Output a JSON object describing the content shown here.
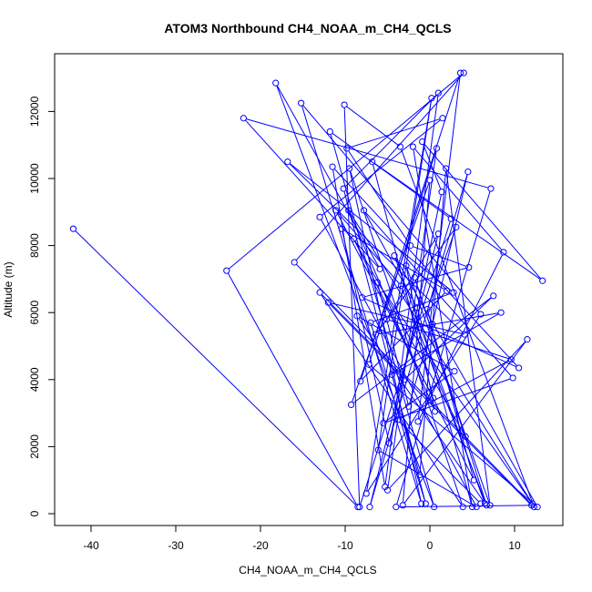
{
  "chart_data": {
    "type": "line",
    "title": "ATOM3 Northbound CH4_NOAA_m_CH4_QCLS",
    "xlabel": "CH4_NOAA_m_CH4_QCLS",
    "ylabel": "Altitude (m)",
    "xlim": [
      -44,
      15
    ],
    "ylim": [
      -400,
      13500
    ],
    "x_ticks": [
      -40,
      -30,
      -20,
      -10,
      0,
      10
    ],
    "y_ticks": [
      0,
      2000,
      4000,
      6000,
      8000,
      10000,
      12000
    ],
    "line_color": "#0000ff",
    "marker": "open-circle",
    "grid": false,
    "legend": "none",
    "series": [
      {
        "x": [
          -42.1,
          -8.5,
          -24.0,
          4.0,
          -16.0,
          12.3,
          -3.5,
          -10.1,
          -8.3,
          2.5,
          -11.8,
          0.5,
          -18.2,
          -5.9,
          -22.0,
          7.2,
          -4.0,
          12.0,
          -13.0,
          3.9,
          -9.5,
          -1.0,
          -15.2,
          6.0,
          -7.5,
          0.2,
          -6.1,
          5.5,
          -13.0,
          1.5,
          -9.8,
          -2.3,
          4.6,
          -8.0,
          10.5,
          -11.5,
          -5.3,
          1.0,
          -10.2,
          -0.5,
          -7.0,
          2.8,
          -16.8,
          4.1,
          -12.0,
          -3.0,
          7.5,
          -9.3,
          0.0,
          -3.2,
          11.5,
          -5.0,
          0.8,
          -7.2,
          12.7,
          -4.2,
          6.5,
          -8.6,
          2.9,
          -5.5,
          9.8,
          -7.8,
          -1.5,
          5.0,
          -2.0,
          8.7,
          -1.4,
          3.6,
          -8.2,
          2.0,
          -10.4,
          -4.8,
          1.4,
          -0.9,
          13.3,
          -6.8,
          0.4,
          -11.1,
          -3.4,
          6.7,
          -1.8,
          4.2,
          -9.0,
          5.2,
          -0.3,
          3.1,
          -6.4,
          8.4,
          -4.5,
          -1.2,
          1.9,
          7.1,
          -2.8,
          0.6,
          -9.6,
          12.1,
          -6.2,
          -2.5,
          0.3,
          4.5,
          -7.1,
          1.0,
          -5.1,
          9.6,
          -3.8,
          6.0
        ],
        "y": [
          8500,
          200,
          7250,
          13150,
          7500,
          200,
          10950,
          12200,
          200,
          8800,
          11400,
          200,
          12850,
          7300,
          11800,
          9700,
          200,
          250,
          6600,
          200,
          10300,
          300,
          12250,
          5950,
          600,
          12400,
          1900,
          200,
          8850,
          11800,
          10900,
          8000,
          7350,
          6450,
          4350,
          10350,
          800,
          12550,
          9700,
          300,
          5700,
          6600,
          10500,
          5350,
          6300,
          4000,
          6500,
          3250,
          9950,
          250,
          5200,
          700,
          10900,
          4450,
          200,
          7700,
          300,
          5900,
          4250,
          2700,
          4050,
          9050,
          6150,
          200,
          10950,
          7800,
          2750,
          13150,
          3950,
          6650,
          8500,
          2100,
          9600,
          11100,
          6950,
          10500,
          3450,
          9050,
          6800,
          250,
          7050,
          2300,
          8200,
          1000,
          6100,
          8550,
          5350,
          6000,
          4150,
          1150,
          10300,
          250,
          7400,
          3050,
          9050,
          300,
          6900,
          3200,
          5650,
          10200,
          200,
          8350,
          5800,
          4600,
          2800,
          300
        ]
      }
    ]
  }
}
